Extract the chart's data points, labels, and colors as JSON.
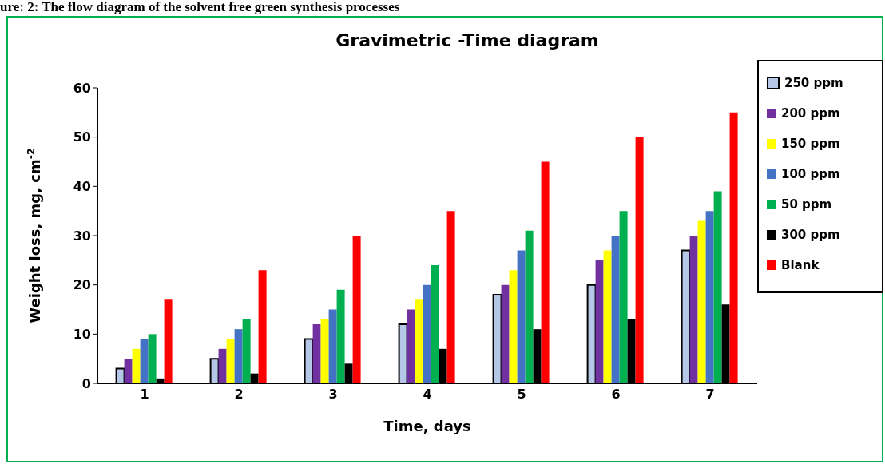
{
  "chart_data": {
    "type": "bar",
    "title": "Gravimetric -Time diagram",
    "xlabel": "Time, days",
    "ylabel": "Weight loss, mg, cm$^{-2}$",
    "annotations": [
      "ure: 2: The flow diagram of the solvent free green synthesis processes"
    ],
    "categories": [
      "1",
      "2",
      "3",
      "4",
      "5",
      "6",
      "7"
    ],
    "series": [
      {
        "name": "250 ppm",
        "color": "#b4c7e7",
        "values": [
          3,
          5,
          9,
          12,
          18,
          20,
          27
        ]
      },
      {
        "name": "200 ppm",
        "color": "#7030a0",
        "values": [
          5,
          7,
          12,
          15,
          20,
          25,
          30
        ]
      },
      {
        "name": "150 ppm",
        "color": "#ffff00",
        "values": [
          7,
          9,
          13,
          17,
          23,
          27,
          33
        ]
      },
      {
        "name": "100 ppm",
        "color": "#4472c4",
        "values": [
          9,
          11,
          15,
          20,
          27,
          30,
          35
        ]
      },
      {
        "name": "50 ppm",
        "color": "#00b050",
        "values": [
          10,
          13,
          19,
          24,
          31,
          35,
          39
        ]
      },
      {
        "name": "300 ppm",
        "color": "#000000",
        "values": [
          1,
          2,
          4,
          7,
          11,
          13,
          16
        ]
      },
      {
        "name": "Blank",
        "color": "#ff0000",
        "values": [
          17,
          23,
          30,
          35,
          45,
          50,
          55
        ]
      }
    ],
    "ylim": [
      0,
      60
    ],
    "yticks": [
      0,
      10,
      20,
      30,
      40,
      50,
      60
    ],
    "legend": "right"
  }
}
